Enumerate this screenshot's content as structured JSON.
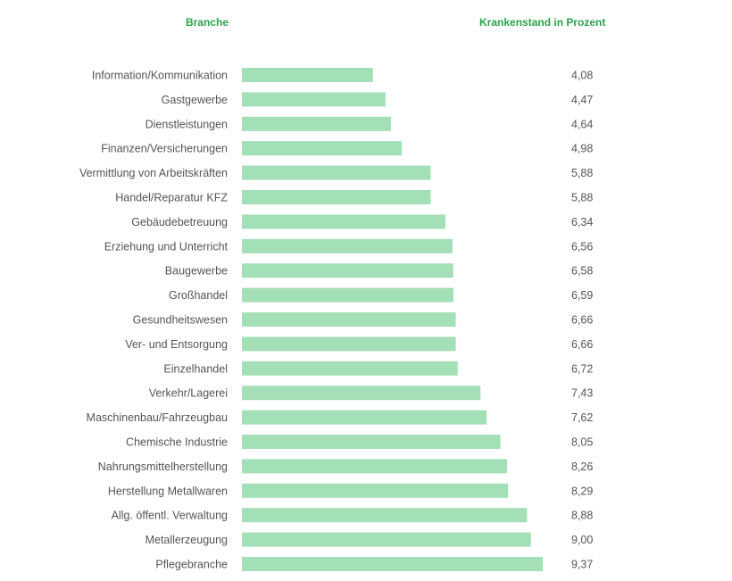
{
  "chart_data": {
    "type": "bar",
    "orientation": "horizontal",
    "category_header": "Branche",
    "value_header": "Krankenstand in Prozent",
    "categories": [
      "Information/Kommunikation",
      "Gastgewerbe",
      "Dienstleistungen",
      "Finanzen/Versicherungen",
      "Vermittlung von Arbeitskräften",
      "Handel/Reparatur KFZ",
      "Gebäudebetreuung",
      "Erziehung und Unterricht",
      "Baugewerbe",
      "Großhandel",
      "Gesundheitswesen",
      "Ver- und Entsorgung",
      "Einzelhandel",
      "Verkehr/Lagerei",
      "Maschinenbau/Fahrzeugbau",
      "Chemische Industrie",
      "Nahrungsmittelherstellung",
      "Herstellung Metallwaren",
      "Allg. öffentl. Verwaltung",
      "Metallerzeugung",
      "Pflegebranche"
    ],
    "values": [
      4.08,
      4.47,
      4.64,
      4.98,
      5.88,
      5.88,
      6.34,
      6.56,
      6.58,
      6.59,
      6.66,
      6.66,
      6.72,
      7.43,
      7.62,
      8.05,
      8.26,
      8.29,
      8.88,
      9.0,
      9.37
    ],
    "value_labels": [
      "4,08",
      "4,47",
      "4,64",
      "4,98",
      "5,88",
      "5,88",
      "6,34",
      "6,56",
      "6,58",
      "6,59",
      "6,66",
      "6,66",
      "6,72",
      "7,43",
      "7,62",
      "8,05",
      "8,26",
      "8,29",
      "8,88",
      "9,00",
      "9,37"
    ],
    "bar_color": "#a3dfb7",
    "header_color": "#2aa34a",
    "text_color": "#555555",
    "grid": false,
    "legend": "none"
  }
}
